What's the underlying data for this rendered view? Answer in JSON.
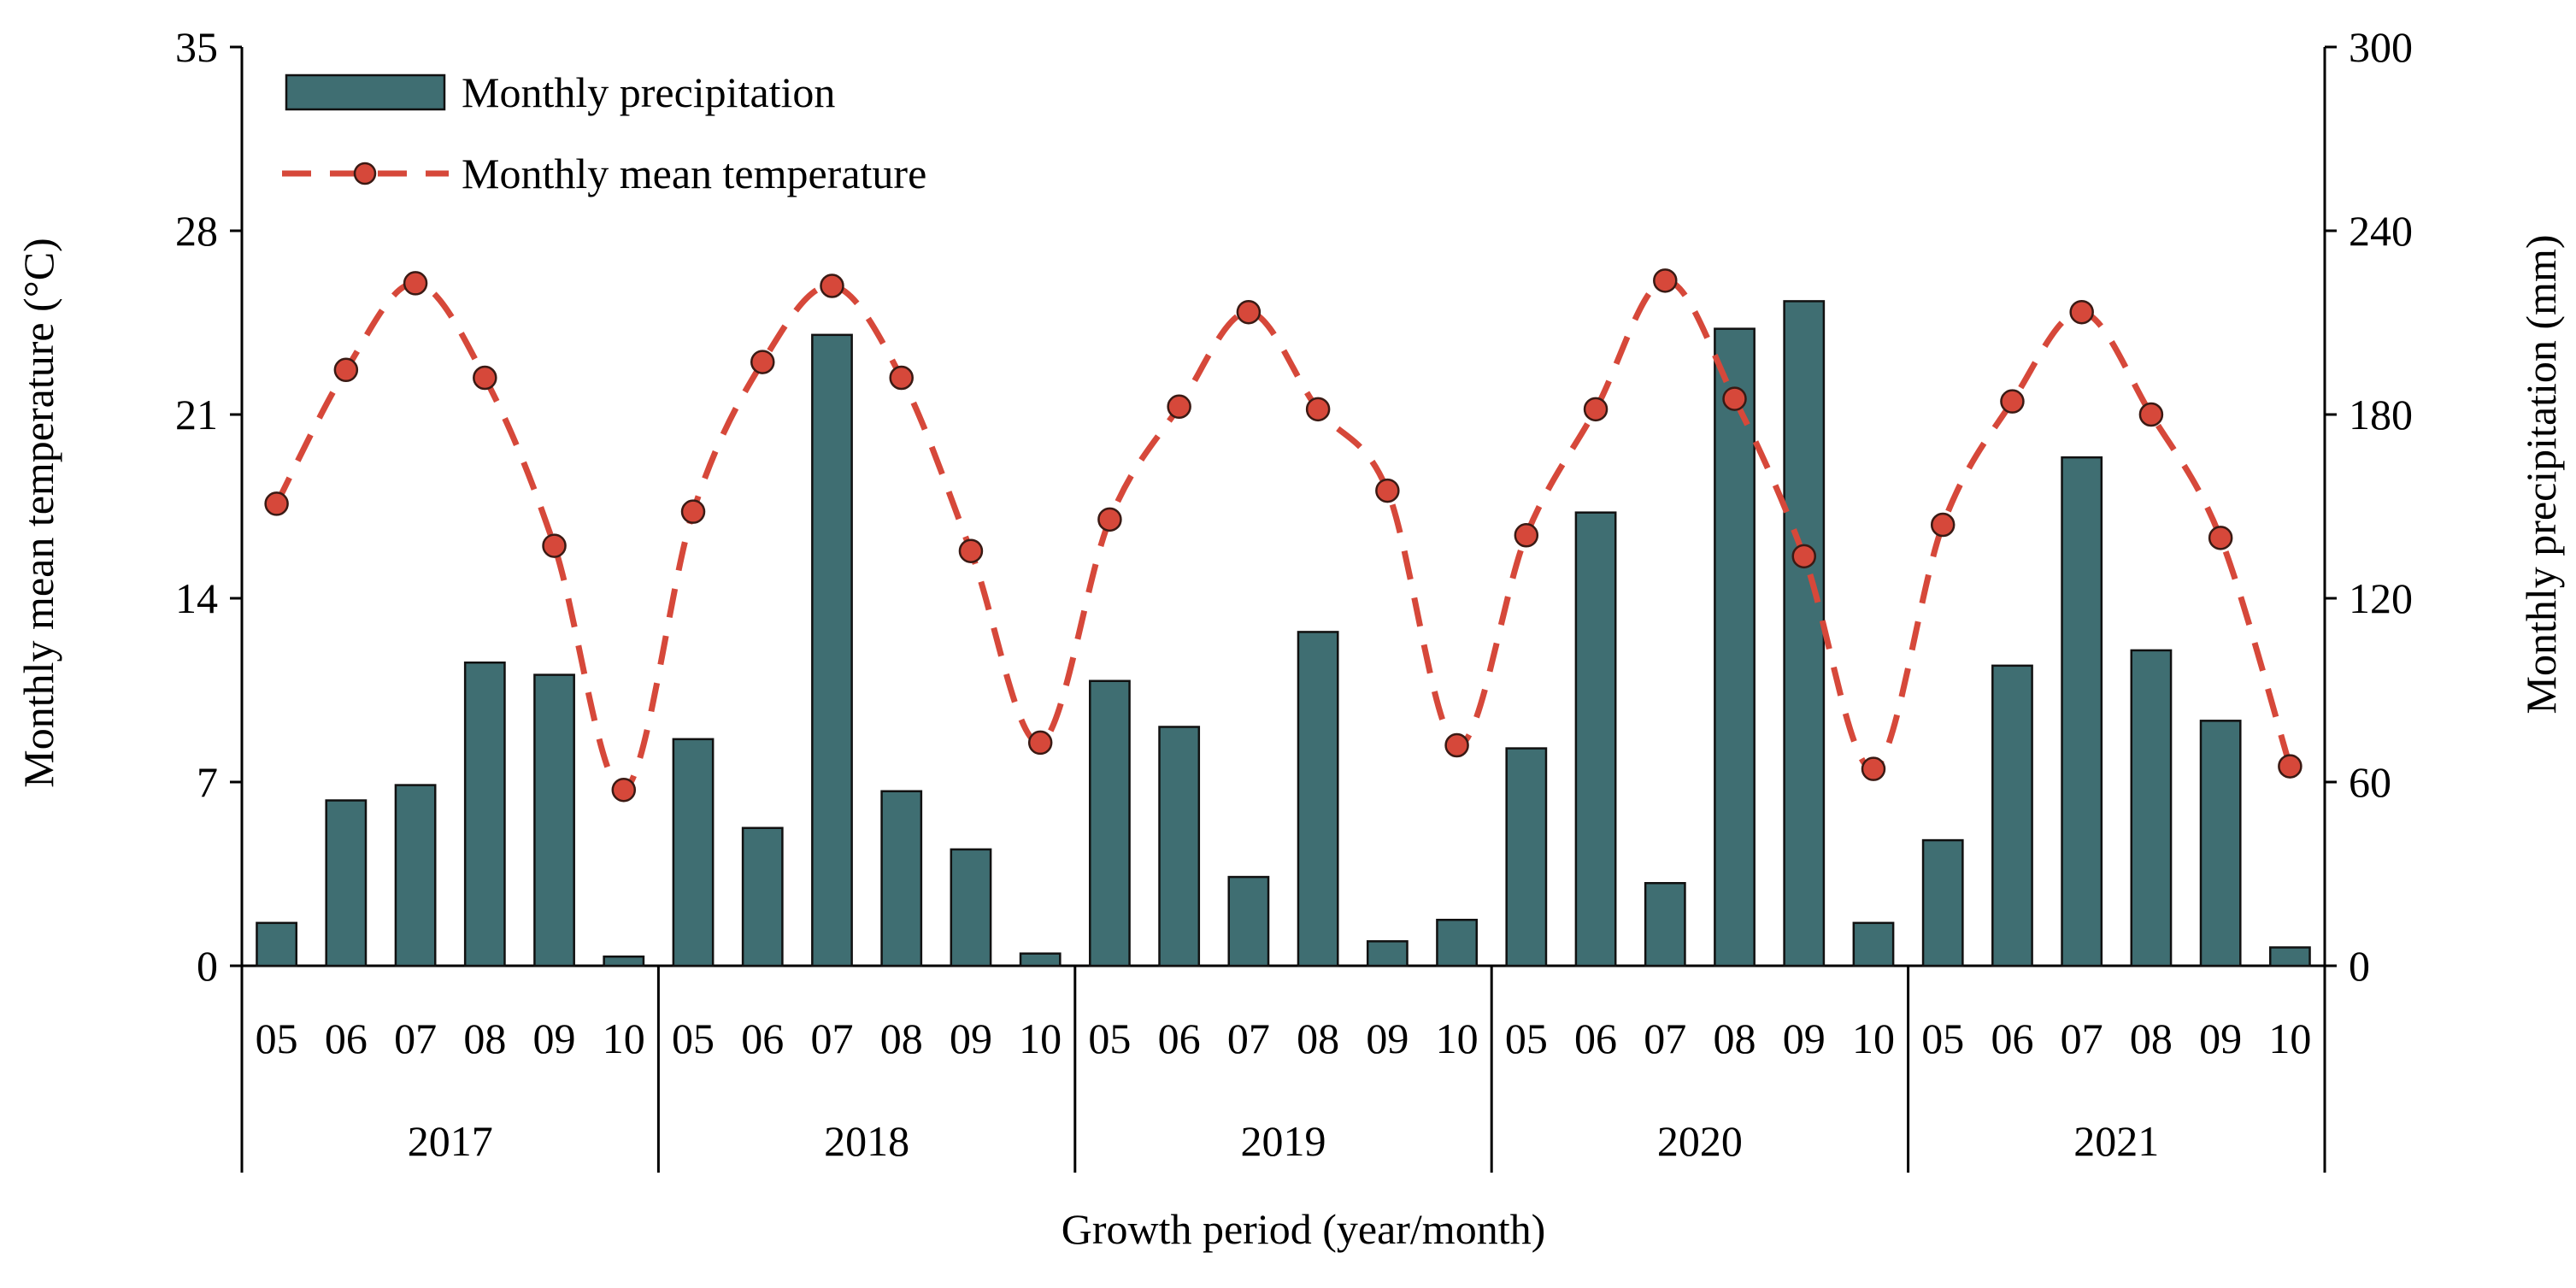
{
  "colors": {
    "bar": "#3F6E72",
    "line": "#D6483A"
  },
  "chart_data": {
    "type": "bar+line",
    "title": "",
    "xlabel": "Growth period (year/month)",
    "ylabel_left": "Monthly mean temperature (°C)",
    "ylabel_right": "Monthly precipitation (mm)",
    "ylim_left": [
      0,
      35
    ],
    "ylim_right": [
      0,
      300
    ],
    "yticks_left": [
      "0",
      "7",
      "14",
      "21",
      "28",
      "35"
    ],
    "yticks_right": [
      "0",
      "60",
      "120",
      "180",
      "240",
      "300"
    ],
    "years": [
      "2017",
      "2018",
      "2019",
      "2020",
      "2021"
    ],
    "months": [
      "05",
      "06",
      "07",
      "08",
      "09",
      "10"
    ],
    "legend": {
      "position": "top-left",
      "precipitation": "Monthly precipitation",
      "temperature": "Monthly mean temperature"
    },
    "series": [
      {
        "name": "Monthly precipitation",
        "type": "bar",
        "axis": "right",
        "unit": "mm",
        "values": [
          14,
          54,
          59,
          99,
          95,
          3,
          74,
          45,
          206,
          57,
          38,
          4,
          93,
          78,
          29,
          109,
          8,
          15,
          71,
          148,
          27,
          208,
          217,
          14,
          41,
          98,
          166,
          103,
          80,
          6
        ]
      },
      {
        "name": "Monthly mean temperature",
        "type": "line",
        "axis": "left",
        "unit": "°C",
        "values": [
          17.6,
          22.7,
          26.0,
          22.4,
          16.0,
          6.7,
          17.3,
          23.0,
          25.9,
          22.4,
          15.8,
          8.5,
          17.0,
          21.3,
          24.9,
          21.2,
          18.1,
          8.4,
          16.4,
          21.2,
          26.1,
          21.6,
          15.6,
          7.5,
          16.8,
          21.5,
          24.9,
          21.0,
          16.3,
          7.6
        ]
      }
    ]
  }
}
